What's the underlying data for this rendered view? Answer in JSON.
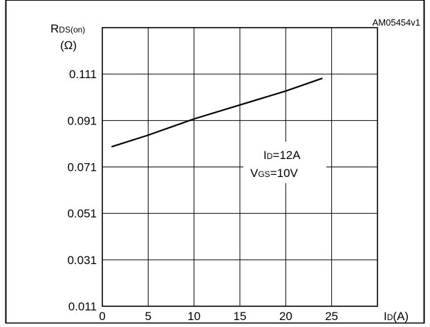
{
  "figure_id": "AM05454v1",
  "chart_data": {
    "type": "line",
    "y_axis": {
      "symbol": "R",
      "subscript": "DS(on)",
      "unit": "(Ω)"
    },
    "x_axis": {
      "symbol": "I",
      "subscript": "D",
      "unit": "(A)"
    },
    "xlim": [
      0,
      30
    ],
    "ylim": [
      0.011,
      0.131
    ],
    "x_ticks": [
      0,
      5,
      10,
      15,
      20,
      25
    ],
    "y_ticks": [
      0.011,
      0.031,
      0.051,
      0.071,
      0.091,
      0.111
    ],
    "grid": true,
    "annotation": {
      "line1": {
        "symbol": "I",
        "subscript": "D",
        "rest": "=12A"
      },
      "line2": {
        "symbol": "V",
        "subscript": "GS",
        "rest": "=10V"
      }
    },
    "series": [
      {
        "x": [
          1,
          5,
          10,
          15,
          20,
          24
        ],
        "y": [
          0.0797,
          0.0847,
          0.0917,
          0.0977,
          0.1037,
          0.1092
        ]
      }
    ]
  }
}
